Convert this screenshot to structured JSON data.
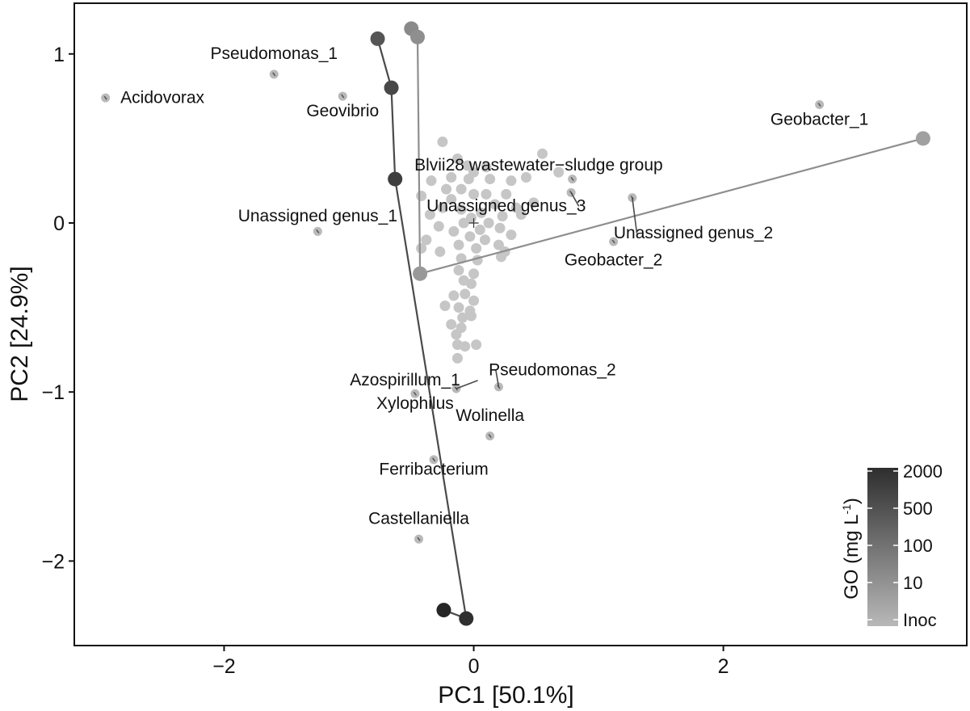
{
  "chart_data": {
    "type": "scatter",
    "subtype": "PCA biplot with treatment trajectories",
    "xlabel": "PC1 [50.1%]",
    "ylabel": "PC2 [24.9%]",
    "xlim": [
      -3.2,
      3.95
    ],
    "ylim": [
      -2.5,
      1.3
    ],
    "x_ticks": [
      -2,
      0,
      2
    ],
    "y_ticks": [
      -2,
      -1,
      0,
      1
    ],
    "x_tick_labels": [
      "−2",
      "0",
      "2"
    ],
    "y_tick_labels": [
      "−2",
      "−1",
      "0",
      "1"
    ],
    "grid": false,
    "centroid_marker": [
      0.0,
      0.0
    ],
    "genus_points": [
      {
        "label": "Pseudomonas_1",
        "x": -1.6,
        "y": 0.88,
        "label_at": [
          -1.6,
          0.97
        ],
        "anchor": "middle"
      },
      {
        "label": "Acidovorax",
        "x": -2.95,
        "y": 0.74,
        "label_at": [
          -2.83,
          0.71
        ],
        "anchor": "start"
      },
      {
        "label": "Geovibrio",
        "x": -1.05,
        "y": 0.75,
        "label_at": [
          -1.05,
          0.63
        ],
        "anchor": "middle"
      },
      {
        "label": "Geobacter_1",
        "x": 2.77,
        "y": 0.7,
        "label_at": [
          2.77,
          0.58
        ],
        "anchor": "middle"
      },
      {
        "label": "Blvii28 wastewater−sludge group",
        "x": 0.79,
        "y": 0.26,
        "label_at": [
          0.52,
          0.31
        ],
        "anchor": "middle"
      },
      {
        "label": "Unassigned genus_1",
        "x": -1.25,
        "y": -0.05,
        "label_at": [
          -1.25,
          0.01
        ],
        "anchor": "middle"
      },
      {
        "label": "Unassigned genus_3",
        "x": 0.78,
        "y": 0.18,
        "label_at": [
          0.26,
          0.07
        ],
        "anchor": "middle",
        "leader": true
      },
      {
        "label": "Unassigned genus_2",
        "x": 1.27,
        "y": 0.15,
        "label_at": [
          1.76,
          -0.09
        ],
        "anchor": "middle",
        "leader": true
      },
      {
        "label": "Geobacter_2",
        "x": 1.12,
        "y": -0.11,
        "label_at": [
          1.12,
          -0.25
        ],
        "anchor": "middle"
      },
      {
        "label": "Azospirillum_1",
        "x": -0.14,
        "y": -0.98,
        "label_at": [
          -0.55,
          -0.96
        ],
        "anchor": "middle",
        "leader": true
      },
      {
        "label": "Pseudomonas_2",
        "x": 0.2,
        "y": -0.97,
        "label_at": [
          0.63,
          -0.9
        ],
        "anchor": "middle",
        "leader": true
      },
      {
        "label": "Xylophilus",
        "x": -0.47,
        "y": -1.01,
        "label_at": [
          -0.47,
          -1.1
        ],
        "anchor": "middle"
      },
      {
        "label": "Wolinella",
        "x": 0.13,
        "y": -1.26,
        "label_at": [
          0.13,
          -1.17
        ],
        "anchor": "middle"
      },
      {
        "label": "Ferribacterium",
        "x": -0.32,
        "y": -1.4,
        "label_at": [
          -0.32,
          -1.49
        ],
        "anchor": "middle"
      },
      {
        "label": "Castellaniella",
        "x": -0.44,
        "y": -1.87,
        "label_at": [
          -0.44,
          -1.78
        ],
        "anchor": "middle"
      }
    ],
    "cluster_points": [
      [
        -0.25,
        0.48
      ],
      [
        -0.13,
        0.38
      ],
      [
        -0.05,
        0.34
      ],
      [
        0.1,
        0.33
      ],
      [
        0.0,
        0.3
      ],
      [
        0.55,
        0.41
      ],
      [
        0.42,
        0.27
      ],
      [
        0.3,
        0.25
      ],
      [
        0.68,
        0.3
      ],
      [
        -0.34,
        0.25
      ],
      [
        -0.18,
        0.27
      ],
      [
        -0.04,
        0.26
      ],
      [
        0.13,
        0.26
      ],
      [
        -0.1,
        0.2
      ],
      [
        -0.22,
        0.2
      ],
      [
        0.1,
        0.17
      ],
      [
        -0.42,
        0.16
      ],
      [
        -0.18,
        0.14
      ],
      [
        0.26,
        0.17
      ],
      [
        0.0,
        0.17
      ],
      [
        0.48,
        0.12
      ],
      [
        -0.25,
        0.09
      ],
      [
        0.17,
        0.11
      ],
      [
        0.34,
        0.09
      ],
      [
        -0.1,
        0.08
      ],
      [
        0.06,
        0.06
      ],
      [
        0.38,
        0.05
      ],
      [
        -0.35,
        0.05
      ],
      [
        -0.02,
        0.03
      ],
      [
        0.23,
        0.04
      ],
      [
        0.12,
        0.0
      ],
      [
        -0.08,
        0.0
      ],
      [
        -0.28,
        -0.02
      ],
      [
        0.05,
        -0.04
      ],
      [
        0.21,
        -0.03
      ],
      [
        -0.16,
        -0.05
      ],
      [
        0.3,
        -0.07
      ],
      [
        -0.03,
        -0.08
      ],
      [
        0.09,
        -0.1
      ],
      [
        -0.38,
        -0.1
      ],
      [
        0.2,
        -0.13
      ],
      [
        -0.12,
        -0.13
      ],
      [
        0.02,
        -0.15
      ],
      [
        -0.27,
        -0.17
      ],
      [
        0.25,
        -0.17
      ],
      [
        -0.1,
        -0.21
      ],
      [
        0.03,
        -0.22
      ],
      [
        0.22,
        -0.2
      ],
      [
        -0.42,
        -0.15
      ],
      [
        -0.12,
        -0.28
      ],
      [
        0.0,
        -0.3
      ],
      [
        -0.08,
        -0.34
      ],
      [
        -0.02,
        -0.36
      ],
      [
        -0.07,
        -0.42
      ],
      [
        0.0,
        -0.46
      ],
      [
        -0.12,
        -0.5
      ],
      [
        -0.03,
        -0.52
      ],
      [
        -0.09,
        -0.56
      ],
      [
        -0.23,
        -0.49
      ],
      [
        -0.18,
        -0.6
      ],
      [
        -0.1,
        -0.62
      ],
      [
        -0.02,
        -0.55
      ],
      [
        -0.14,
        -0.66
      ],
      [
        -0.13,
        -0.72
      ],
      [
        -0.07,
        -0.73
      ],
      [
        0.02,
        -0.72
      ],
      [
        -0.13,
        -0.8
      ],
      [
        -0.16,
        -0.43
      ]
    ],
    "trajectories": [
      {
        "role": "lighter gray trajectory",
        "color": "#8e8e8e",
        "points": [
          {
            "x": -0.5,
            "y": 1.15,
            "color": "#8a8a8a"
          },
          {
            "x": -0.45,
            "y": 1.1,
            "color": "#8f8f8f"
          },
          {
            "x": -0.43,
            "y": -0.3,
            "color": "#999999"
          },
          {
            "x": 3.6,
            "y": 0.5,
            "color": "#a0a0a0"
          }
        ]
      },
      {
        "role": "darker trajectory",
        "color": "#4a4a4a",
        "points": [
          {
            "x": -0.77,
            "y": 1.09,
            "color": "#555555"
          },
          {
            "x": -0.66,
            "y": 0.8,
            "color": "#484848"
          },
          {
            "x": -0.63,
            "y": 0.26,
            "color": "#3e3e3e"
          },
          {
            "x": -0.06,
            "y": -2.34,
            "color": "#303030"
          },
          {
            "x": -0.24,
            "y": -2.29,
            "color": "#262626"
          }
        ]
      }
    ],
    "legend": {
      "title": "GO (mg L",
      "title_sup": "-1",
      "title_close": ")",
      "labels": [
        "2000",
        "500",
        "100",
        "10",
        "Inoc"
      ],
      "color_top": "#2e2e2e",
      "color_bottom": "#b8b8b8",
      "placement": "bottom-right"
    },
    "colors": {
      "cluster_point": "#c6c6c6",
      "genus_point": "#b9b9b9",
      "genus_point_mark": "#555555",
      "leader": "#4a4a4a"
    }
  }
}
